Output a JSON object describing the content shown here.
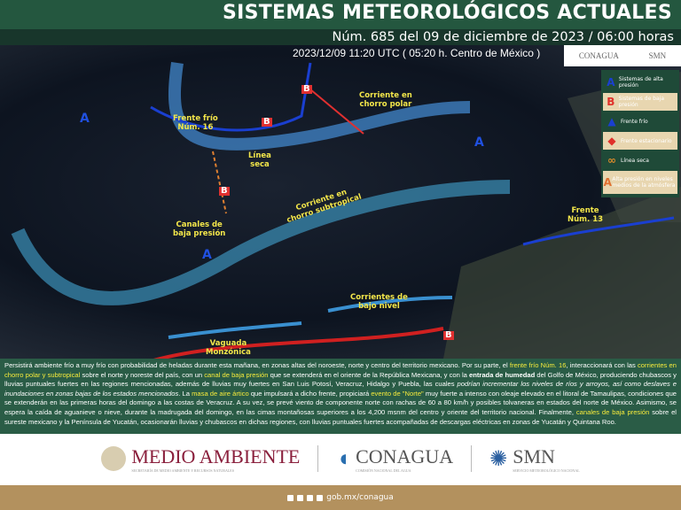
{
  "header": {
    "title": "SISTEMAS METEOROLÓGICOS ACTUALES",
    "subtitle": "Núm. 685 del 09 de diciembre de 2023 / 06:00 horas"
  },
  "map": {
    "timestamp": "2023/12/09 11:20 UTC ( 05:20 h. Centro de México )",
    "labels": {
      "frente16": "Frente frío\nNúm. 16",
      "chorro_polar": "Corriente en\nchorro polar",
      "linea_seca": "Línea\nseca",
      "chorro_sub": "Corriente en\nchorro subtropical",
      "canales": "Canales de\nbaja presión",
      "frente13": "Frente\nNúm. 13",
      "bajo_nivel": "Corrientes de\nbajo nivel",
      "vaguada": "Vaguada\nMonzónica"
    },
    "high": "A",
    "low": "B"
  },
  "top_logos": {
    "conagua": "CONAGUA",
    "smn": "SMN"
  },
  "legend": [
    {
      "icon": "A",
      "label": "Sistemas de alta presión",
      "color": "#1a3fd0"
    },
    {
      "icon": "B",
      "label": "Sistemas de baja presión",
      "color": "#e0302a"
    },
    {
      "icon": "cold-front-icon",
      "label": "Frente frío",
      "color": "#1a3fd0"
    },
    {
      "icon": "stationary-front-icon",
      "label": "Frente estacionario",
      "color": "#e0302a"
    },
    {
      "icon": "dry-line-icon",
      "label": "Línea seca",
      "color": "#d98a2a"
    },
    {
      "icon": "A",
      "label": "Alta presión en niveles medios de la atmósfera",
      "color": "#e07030"
    }
  ],
  "paragraph": [
    {
      "t": "Persistirá ambiente frío a muy frío con probabilidad de heladas durante esta mañana, en zonas altas del noroeste, norte y centro del territorio mexicano. Por su parte, el "
    },
    {
      "t": "frente frío Núm. 16",
      "s": "hl"
    },
    {
      "t": ", interaccionará con las "
    },
    {
      "t": "corrientes en chorro polar y subtropical",
      "s": "hl"
    },
    {
      "t": " sobre el norte y noreste del país, con un "
    },
    {
      "t": "canal de baja presión",
      "s": "hl"
    },
    {
      "t": " que se extenderá en el oriente de la República Mexicana, y con la "
    },
    {
      "t": "entrada de humedad",
      "s": "b"
    },
    {
      "t": " del Golfo de México, produciendo chubascos y lluvias puntuales fuertes en las regiones mencionadas, además de lluvias muy fuertes en San Luis Potosí, Veracruz, Hidalgo y Puebla, las cuales "
    },
    {
      "t": "podrían incrementar los niveles de ríos y arroyos, así como deslaves e inundaciones en zonas bajas de los estados mencionados",
      "s": "it"
    },
    {
      "t": ". La "
    },
    {
      "t": "masa de aire ártico",
      "s": "hl"
    },
    {
      "t": " que impulsará a dicho frente, propiciará "
    },
    {
      "t": "evento de \"Norte\"",
      "s": "hl"
    },
    {
      "t": " muy fuerte a intenso con oleaje elevado en el litoral de Tamaulipas, condiciones que se extenderán en las primeras horas del domingo a las costas de Veracruz. A su vez, se prevé viento de componente norte con rachas de 60 a 80 km/h y posibles tolvaneras en estados del norte de México. Asimismo, se espera la caída de aguanieve o nieve, durante la madrugada del domingo, en las cimas montañosas superiores a los 4,200 msnm del centro y oriente del territorio nacional. Finalmente, "
    },
    {
      "t": "canales de baja presión",
      "s": "hl"
    },
    {
      "t": " sobre el sureste mexicano y la Península de Yucatán, ocasionarán lluvias y chubascos en dichas regiones, con lluvias puntuales fuertes acompañadas de descargas eléctricas en zonas de Yucatán y Quintana Roo."
    }
  ],
  "logos": {
    "medio_ambiente": "MEDIO AMBIENTE",
    "medio_ambiente_sub": "SECRETARÍA DE MEDIO AMBIENTE Y RECURSOS NATURALES",
    "conagua": "CONAGUA",
    "conagua_sub": "COMISIÓN NACIONAL DEL AGUA",
    "smn": "SMN",
    "smn_sub": "SERVICIO METEOROLÓGICO NACIONAL"
  },
  "footer": {
    "url": "gob.mx/conagua"
  }
}
